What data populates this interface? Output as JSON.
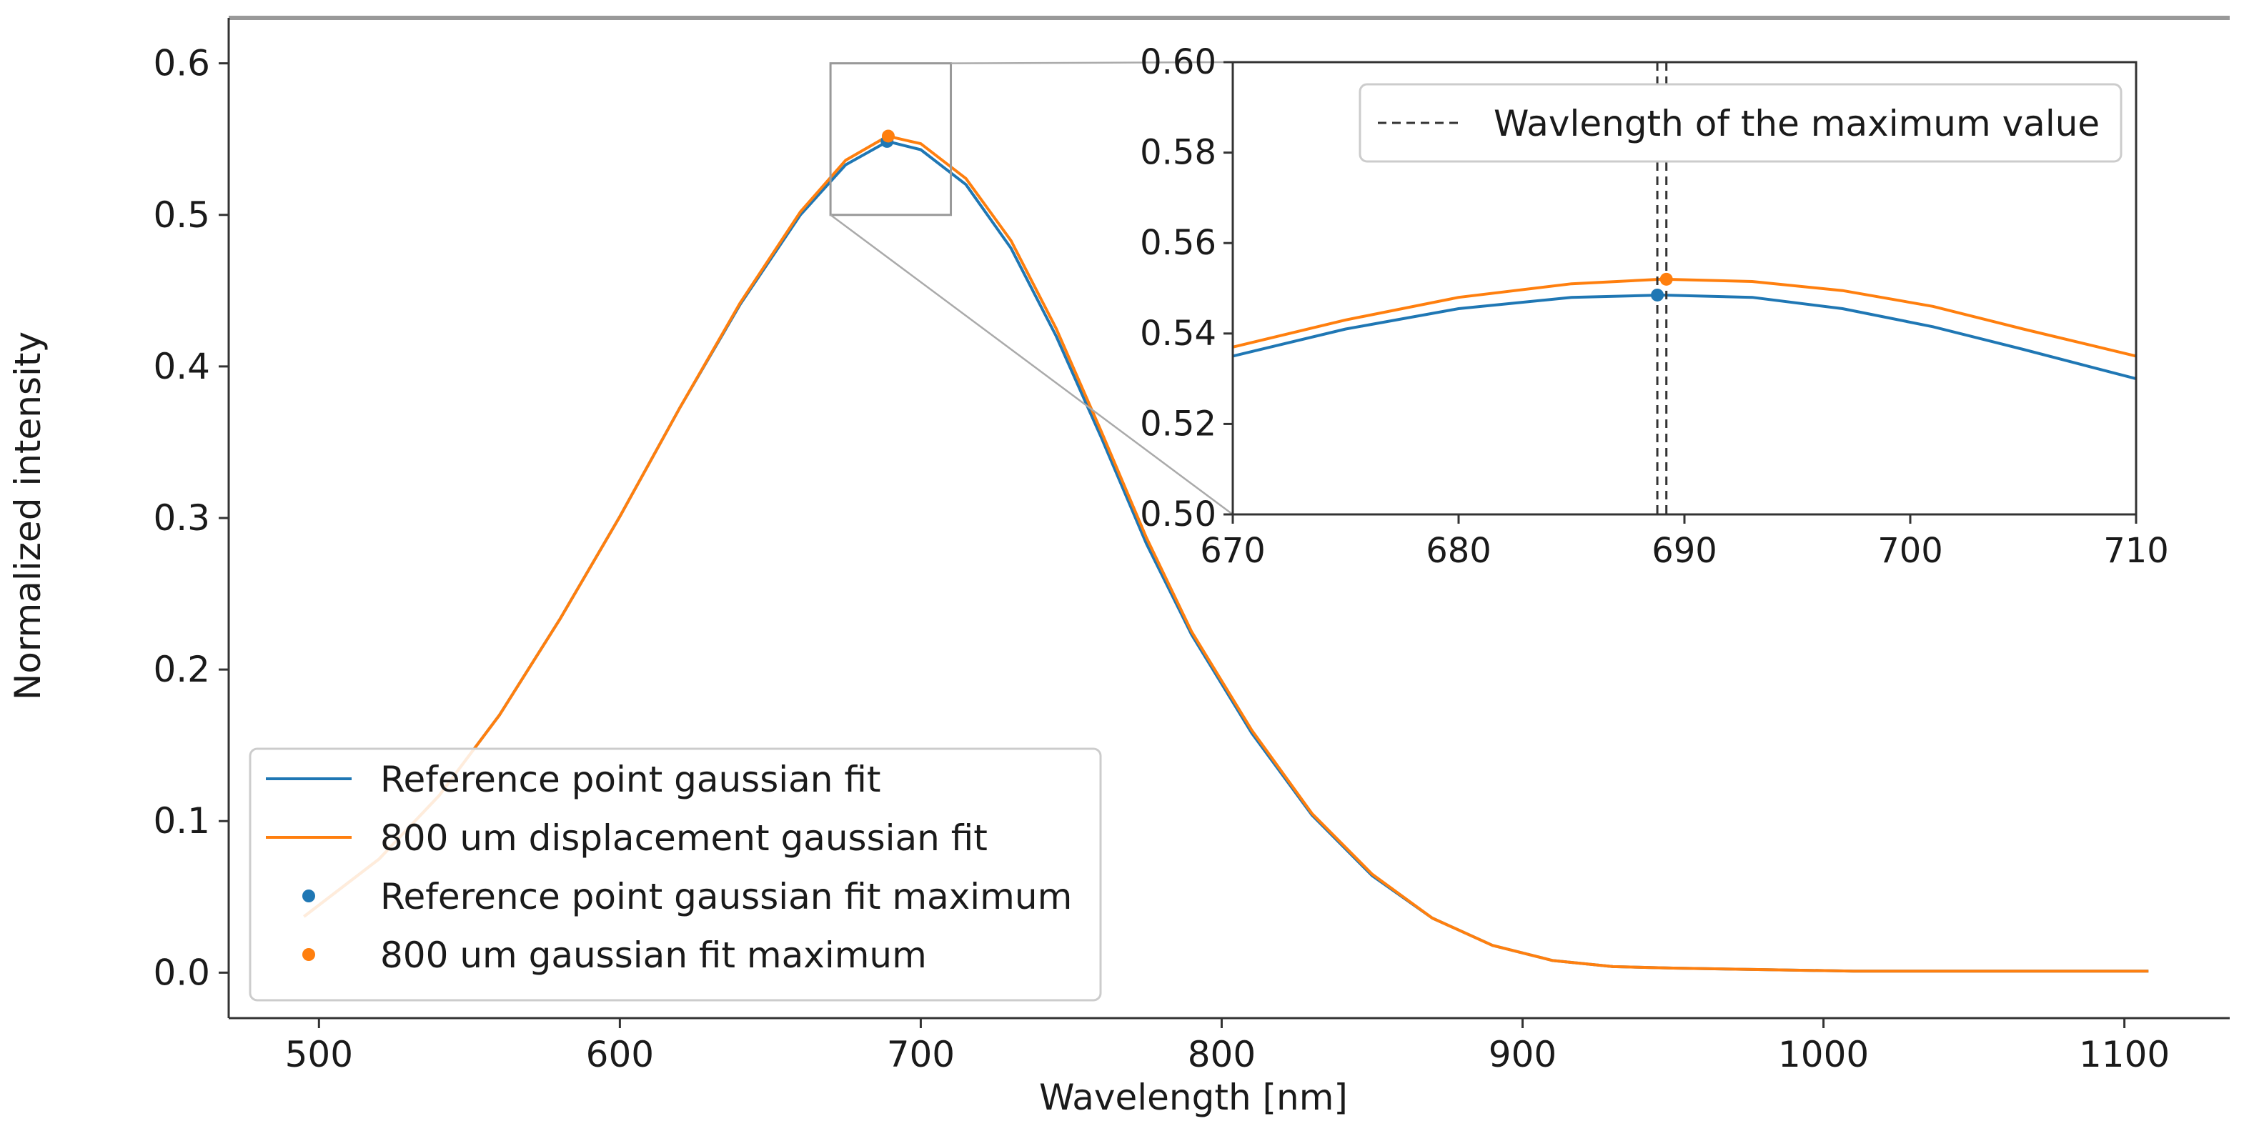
{
  "chart_data": [
    {
      "type": "line",
      "panel": "main",
      "title": "",
      "xlabel": "Wavelength [nm]",
      "ylabel": "Normalized intensity",
      "xlim": [
        470,
        1135
      ],
      "ylim": [
        -0.03,
        0.63
      ],
      "xticks": [
        500,
        600,
        700,
        800,
        900,
        1000,
        1100
      ],
      "xtick_labels": [
        "500",
        "600",
        "700",
        "800",
        "900",
        "1000",
        "1100"
      ],
      "yticks": [
        0.0,
        0.1,
        0.2,
        0.3,
        0.4,
        0.5,
        0.6
      ],
      "ytick_labels": [
        "0.0",
        "0.1",
        "0.2",
        "0.3",
        "0.4",
        "0.5",
        "0.6"
      ],
      "grid": false,
      "legend_position": "lower-left",
      "series": [
        {
          "name": "Reference point gaussian fit",
          "color": "#1f77b4",
          "x": [
            495,
            520,
            540,
            560,
            580,
            600,
            620,
            640,
            660,
            675,
            689,
            700,
            715,
            730,
            745,
            760,
            775,
            790,
            810,
            830,
            850,
            870,
            890,
            910,
            930,
            950,
            980,
            1010,
            1040,
            1070,
            1108
          ],
          "y": [
            0.037,
            0.075,
            0.117,
            0.17,
            0.233,
            0.301,
            0.373,
            0.441,
            0.5,
            0.533,
            0.5485,
            0.543,
            0.52,
            0.478,
            0.42,
            0.353,
            0.283,
            0.223,
            0.158,
            0.104,
            0.064,
            0.036,
            0.018,
            0.008,
            0.004,
            0.003,
            0.002,
            0.001,
            0.001,
            0.001,
            0.001
          ]
        },
        {
          "name": "800 um displacement gaussian fit",
          "color": "#ff7f0e",
          "x": [
            495,
            520,
            540,
            560,
            580,
            600,
            620,
            640,
            660,
            675,
            689,
            700,
            715,
            730,
            745,
            760,
            775,
            790,
            810,
            830,
            850,
            870,
            890,
            910,
            930,
            950,
            980,
            1010,
            1040,
            1070,
            1108
          ],
          "y": [
            0.037,
            0.075,
            0.117,
            0.17,
            0.233,
            0.301,
            0.373,
            0.442,
            0.502,
            0.536,
            0.552,
            0.547,
            0.524,
            0.483,
            0.425,
            0.357,
            0.287,
            0.225,
            0.16,
            0.105,
            0.065,
            0.036,
            0.018,
            0.008,
            0.004,
            0.003,
            0.002,
            0.001,
            0.001,
            0.001,
            0.001
          ]
        },
        {
          "name": "Reference point gaussian fit maximum",
          "color": "#1f77b4",
          "marker": "dot",
          "x": [
            688.8
          ],
          "y": [
            0.5485
          ]
        },
        {
          "name": "800 um gaussian fit maximum",
          "color": "#ff7f0e",
          "marker": "dot",
          "x": [
            689.2
          ],
          "y": [
            0.552
          ]
        }
      ],
      "zoom_box": {
        "x": [
          670,
          710
        ],
        "y": [
          0.5,
          0.6
        ]
      }
    },
    {
      "type": "line",
      "panel": "inset",
      "xlim": [
        670,
        710
      ],
      "ylim": [
        0.5,
        0.6
      ],
      "xticks": [
        670,
        680,
        690,
        700,
        710
      ],
      "xtick_labels": [
        "670",
        "680",
        "690",
        "700",
        "710"
      ],
      "yticks": [
        0.5,
        0.52,
        0.54,
        0.56,
        0.58,
        0.6
      ],
      "ytick_labels": [
        "0.50",
        "0.52",
        "0.54",
        "0.56",
        "0.58",
        "0.60"
      ],
      "grid": false,
      "legend_position": "top-right",
      "series": [
        {
          "name": "Reference point gaussian fit",
          "color": "#1f77b4",
          "x": [
            670,
            675,
            680,
            685,
            689,
            693,
            697,
            701,
            705,
            710
          ],
          "y": [
            0.535,
            0.541,
            0.5455,
            0.548,
            0.5485,
            0.548,
            0.5455,
            0.5415,
            0.5365,
            0.53
          ]
        },
        {
          "name": "800 um displacement gaussian fit",
          "color": "#ff7f0e",
          "x": [
            670,
            675,
            680,
            685,
            689,
            693,
            697,
            701,
            705,
            710
          ],
          "y": [
            0.537,
            0.543,
            0.548,
            0.551,
            0.552,
            0.5515,
            0.5495,
            0.546,
            0.541,
            0.535
          ]
        },
        {
          "name": "Reference point gaussian fit maximum",
          "color": "#1f77b4",
          "marker": "dot",
          "x": [
            688.8
          ],
          "y": [
            0.5485
          ]
        },
        {
          "name": "800 um gaussian fit maximum",
          "color": "#ff7f0e",
          "marker": "dot",
          "x": [
            689.2
          ],
          "y": [
            0.552
          ]
        },
        {
          "name": "Wavlength of the maximum value",
          "color": "#333333",
          "style": "dashed-vertical",
          "x": [
            688.8,
            689.2
          ]
        }
      ]
    }
  ],
  "legend": {
    "main": [
      {
        "label": "Reference point gaussian fit",
        "kind": "line",
        "color": "#1f77b4"
      },
      {
        "label": "800 um displacement gaussian fit",
        "kind": "line",
        "color": "#ff7f0e"
      },
      {
        "label": "Reference point gaussian fit maximum",
        "kind": "dot",
        "color": "#1f77b4"
      },
      {
        "label": "800 um gaussian fit maximum",
        "kind": "dot",
        "color": "#ff7f0e"
      }
    ],
    "inset": [
      {
        "label": "Wavlength of the maximum value",
        "kind": "dashed",
        "color": "#333333"
      }
    ]
  }
}
